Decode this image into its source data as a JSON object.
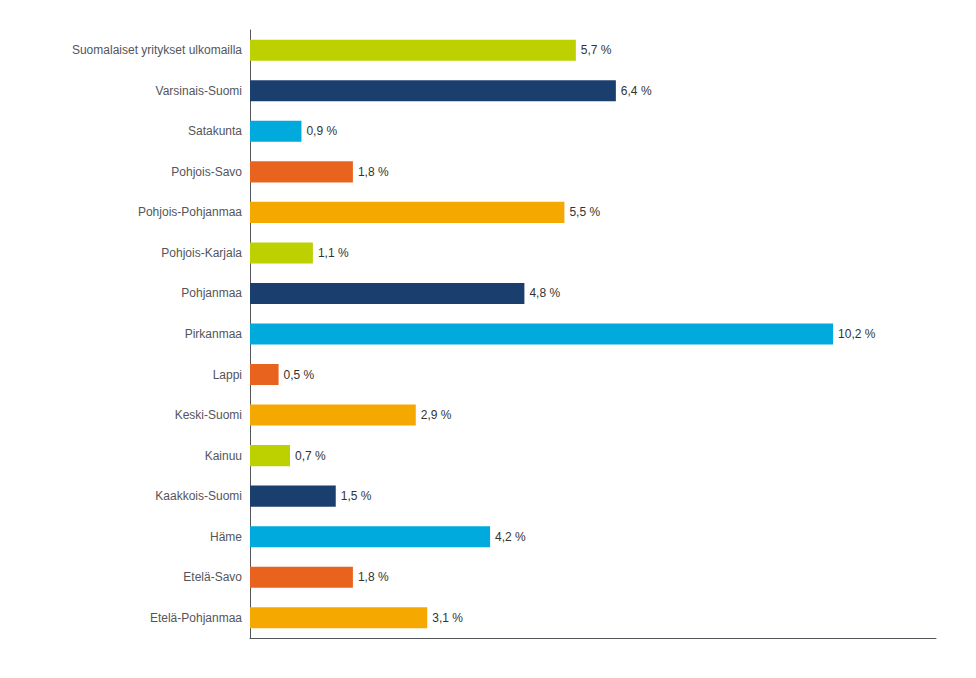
{
  "chart_data": {
    "type": "bar",
    "orientation": "horizontal",
    "categories": [
      "Etelä-Pohjanmaa",
      "Etelä-Savo",
      "Häme",
      "Kaakkois-Suomi",
      "Kainuu",
      "Keski-Suomi",
      "Lappi",
      "Pirkanmaa",
      "Pohjanmaa",
      "Pohjois-Karjala",
      "Pohjois-Pohjanmaa",
      "Pohjois-Savo",
      "Satakunta",
      "Varsinais-Suomi",
      "Suomalaiset yritykset ulkomailla"
    ],
    "values": [
      3.1,
      1.8,
      4.2,
      1.5,
      0.7,
      2.9,
      0.5,
      10.2,
      4.8,
      1.1,
      5.5,
      1.8,
      0.9,
      6.4,
      5.7
    ],
    "value_labels": [
      "3,1 %",
      "1,8 %",
      "4,2 %",
      "1,5 %",
      "0,7 %",
      "2,9 %",
      "0,5 %",
      "10,2 %",
      "4,8 %",
      "1,1 %",
      "5,5 %",
      "1,8 %",
      "0,9 %",
      "6,4 %",
      "5,7 %"
    ],
    "data_labels": true,
    "colors": [
      "#F5A800",
      "#E8641E",
      "#00AADC",
      "#1A3F6F",
      "#BDD000",
      "#F5A800",
      "#E8641E",
      "#00AADC",
      "#1A3F6F",
      "#BDD000",
      "#F5A800",
      "#E8641E",
      "#00AADC",
      "#1A3F6F",
      "#BDD000"
    ],
    "xlim": [
      0,
      12.0
    ],
    "tick_labels": "y",
    "grid": false
  }
}
